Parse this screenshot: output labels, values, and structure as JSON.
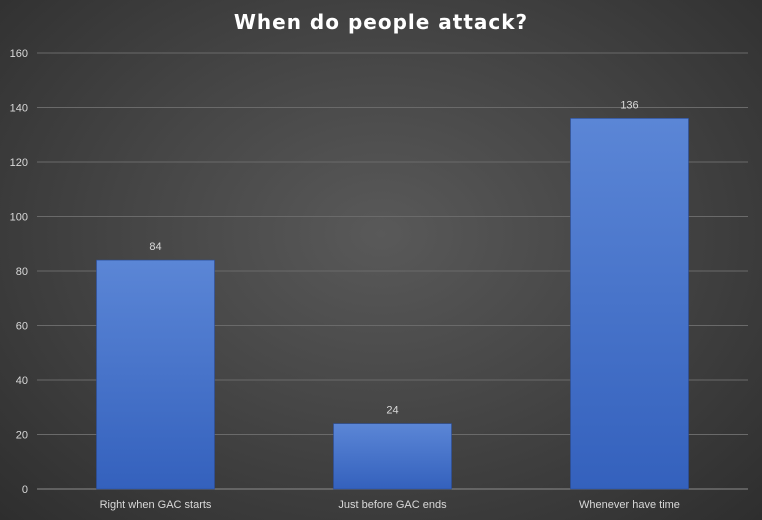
{
  "chart_data": {
    "type": "bar",
    "title": "When do people attack?",
    "categories": [
      "Right when GAC starts",
      "Just before GAC ends",
      "Whenever have time"
    ],
    "values": [
      84,
      24,
      136
    ],
    "ylim": [
      0,
      160
    ],
    "yticks": [
      0,
      20,
      40,
      60,
      80,
      100,
      120,
      140,
      160
    ],
    "xlabel": "",
    "ylabel": "",
    "grid": true,
    "legend": "none",
    "colors": {
      "bar_top": "#5b86d6",
      "bar_bottom": "#3461bd",
      "grid": "#6a6a6a",
      "axis": "#8c8c8c"
    }
  }
}
